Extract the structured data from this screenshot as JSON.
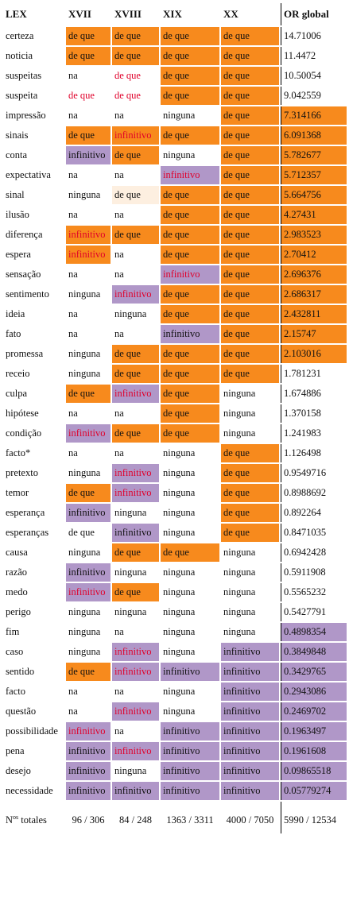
{
  "headers": [
    "LEX",
    "XVII",
    "XVIII",
    "XIX",
    "XX",
    "OR global"
  ],
  "colors": {
    "orange": "#f78a1d",
    "purple": "#b097c8",
    "light": "#fdefe0",
    "red_text": "#e0002a"
  },
  "rows": [
    {
      "lex": "certeza",
      "c": [
        [
          "de que",
          "o",
          ""
        ],
        [
          "de que",
          "o",
          ""
        ],
        [
          "de que",
          "o",
          ""
        ],
        [
          "de que",
          "o",
          ""
        ]
      ],
      "or": "14.71006",
      "orc": ""
    },
    {
      "lex": "noticia",
      "c": [
        [
          "de que",
          "o",
          ""
        ],
        [
          "de que",
          "o",
          ""
        ],
        [
          "de que",
          "o",
          ""
        ],
        [
          "de que",
          "o",
          ""
        ]
      ],
      "or": "11.4472",
      "orc": ""
    },
    {
      "lex": "suspeitas",
      "c": [
        [
          "na",
          "",
          ""
        ],
        [
          "de que",
          "",
          "red"
        ],
        [
          "de que",
          "o",
          ""
        ],
        [
          "de que",
          "o",
          ""
        ]
      ],
      "or": "10.50054",
      "orc": ""
    },
    {
      "lex": "suspeita",
      "c": [
        [
          "de que",
          "",
          "red"
        ],
        [
          "de que",
          "",
          "red"
        ],
        [
          "de que",
          "o",
          ""
        ],
        [
          "de que",
          "o",
          ""
        ]
      ],
      "or": "9.042559",
      "orc": ""
    },
    {
      "lex": "impressão",
      "c": [
        [
          "na",
          "",
          ""
        ],
        [
          "na",
          "",
          ""
        ],
        [
          "ninguna",
          "",
          ""
        ],
        [
          "de que",
          "o",
          ""
        ]
      ],
      "or": "7.314166",
      "orc": "o"
    },
    {
      "lex": "sinais",
      "c": [
        [
          "de que",
          "o",
          ""
        ],
        [
          "infinitivo",
          "o",
          "red"
        ],
        [
          "de que",
          "o",
          ""
        ],
        [
          "de que",
          "o",
          ""
        ]
      ],
      "or": "6.091368",
      "orc": "o"
    },
    {
      "lex": "conta",
      "c": [
        [
          "infinitivo",
          "p",
          ""
        ],
        [
          "de que",
          "o",
          ""
        ],
        [
          "ninguna",
          "",
          ""
        ],
        [
          "de que",
          "o",
          ""
        ]
      ],
      "or": "5.782677",
      "orc": "o"
    },
    {
      "lex": "expectativa",
      "c": [
        [
          "na",
          "",
          ""
        ],
        [
          "na",
          "",
          ""
        ],
        [
          "infinitivo",
          "p",
          "red"
        ],
        [
          "de que",
          "o",
          ""
        ]
      ],
      "or": "5.712357",
      "orc": "o"
    },
    {
      "lex": "sinal",
      "c": [
        [
          "ninguna",
          "",
          ""
        ],
        [
          "de que",
          "l",
          ""
        ],
        [
          "de que",
          "o",
          ""
        ],
        [
          "de que",
          "o",
          ""
        ]
      ],
      "or": "5.664756",
      "orc": "o"
    },
    {
      "lex": "ilusão",
      "c": [
        [
          "na",
          "",
          ""
        ],
        [
          "na",
          "",
          ""
        ],
        [
          "de que",
          "o",
          ""
        ],
        [
          "de que",
          "o",
          ""
        ]
      ],
      "or": "4.27431",
      "orc": "o"
    },
    {
      "lex": "diferença",
      "c": [
        [
          "infinitivo",
          "o",
          "red"
        ],
        [
          "de que",
          "o",
          ""
        ],
        [
          "de que",
          "o",
          ""
        ],
        [
          "de que",
          "o",
          ""
        ]
      ],
      "or": "2.983523",
      "orc": "o"
    },
    {
      "lex": "espera",
      "c": [
        [
          "infinitivo",
          "o",
          "red"
        ],
        [
          "na",
          "",
          ""
        ],
        [
          "de que",
          "o",
          ""
        ],
        [
          "de que",
          "o",
          ""
        ]
      ],
      "or": "2.70412",
      "orc": "o"
    },
    {
      "lex": "sensação",
      "c": [
        [
          "na",
          "",
          ""
        ],
        [
          "na",
          "",
          ""
        ],
        [
          "infinitivo",
          "p",
          "red"
        ],
        [
          "de que",
          "o",
          ""
        ]
      ],
      "or": "2.696376",
      "orc": "o"
    },
    {
      "lex": "sentimento",
      "c": [
        [
          "ninguna",
          "",
          ""
        ],
        [
          "infinitivo",
          "p",
          "red"
        ],
        [
          "de que",
          "o",
          ""
        ],
        [
          "de que",
          "o",
          ""
        ]
      ],
      "or": "2.686317",
      "orc": "o"
    },
    {
      "lex": "ideia",
      "c": [
        [
          "na",
          "",
          ""
        ],
        [
          "ninguna",
          "",
          ""
        ],
        [
          "de que",
          "o",
          ""
        ],
        [
          "de que",
          "o",
          ""
        ]
      ],
      "or": "2.432811",
      "orc": "o"
    },
    {
      "lex": "fato",
      "c": [
        [
          "na",
          "",
          ""
        ],
        [
          "na",
          "",
          ""
        ],
        [
          "infinitivo",
          "p",
          ""
        ],
        [
          "de que",
          "o",
          ""
        ]
      ],
      "or": "2.15747",
      "orc": "o"
    },
    {
      "lex": "promessa",
      "c": [
        [
          "ninguna",
          "",
          ""
        ],
        [
          "de que",
          "o",
          ""
        ],
        [
          "de que",
          "o",
          ""
        ],
        [
          "de que",
          "o",
          ""
        ]
      ],
      "or": "2.103016",
      "orc": "o"
    },
    {
      "lex": "receio",
      "c": [
        [
          "ninguna",
          "",
          ""
        ],
        [
          "de que",
          "o",
          ""
        ],
        [
          "de que",
          "o",
          ""
        ],
        [
          "de que",
          "o",
          ""
        ]
      ],
      "or": "1.781231",
      "orc": ""
    },
    {
      "lex": "culpa",
      "c": [
        [
          "de que",
          "o",
          ""
        ],
        [
          "infinitivo",
          "p",
          "red"
        ],
        [
          "de que",
          "o",
          ""
        ],
        [
          "ninguna",
          "",
          ""
        ]
      ],
      "or": "1.674886",
      "orc": ""
    },
    {
      "lex": "hipótese",
      "c": [
        [
          "na",
          "",
          ""
        ],
        [
          "na",
          "",
          ""
        ],
        [
          "de que",
          "o",
          ""
        ],
        [
          "ninguna",
          "",
          ""
        ]
      ],
      "or": "1.370158",
      "orc": ""
    },
    {
      "lex": "condição",
      "c": [
        [
          "infinitivo",
          "p",
          "red"
        ],
        [
          "de que",
          "o",
          ""
        ],
        [
          "de que",
          "o",
          ""
        ],
        [
          "ninguna",
          "",
          ""
        ]
      ],
      "or": "1.241983",
      "orc": ""
    },
    {
      "lex": "facto*",
      "c": [
        [
          "na",
          "",
          ""
        ],
        [
          "na",
          "",
          ""
        ],
        [
          "ninguna",
          "",
          ""
        ],
        [
          "de que",
          "o",
          ""
        ]
      ],
      "or": "1.126498",
      "orc": ""
    },
    {
      "lex": "pretexto",
      "c": [
        [
          "ninguna",
          "",
          ""
        ],
        [
          "infinitivo",
          "p",
          "red"
        ],
        [
          "ninguna",
          "",
          ""
        ],
        [
          "de que",
          "o",
          ""
        ]
      ],
      "or": "0.9549716",
      "orc": ""
    },
    {
      "lex": "temor",
      "c": [
        [
          "de que",
          "o",
          ""
        ],
        [
          "infinitivo",
          "p",
          "red"
        ],
        [
          "ninguna",
          "",
          ""
        ],
        [
          "de que",
          "o",
          ""
        ]
      ],
      "or": "0.8988692",
      "orc": ""
    },
    {
      "lex": "esperança",
      "c": [
        [
          "infinitivo",
          "p",
          ""
        ],
        [
          "ninguna",
          "",
          ""
        ],
        [
          "ninguna",
          "",
          ""
        ],
        [
          "de que",
          "o",
          ""
        ]
      ],
      "or": "0.892264",
      "orc": ""
    },
    {
      "lex": "esperanças",
      "c": [
        [
          "de que",
          "",
          ""
        ],
        [
          "infinitivo",
          "p",
          ""
        ],
        [
          "ninguna",
          "",
          ""
        ],
        [
          "de que",
          "o",
          ""
        ]
      ],
      "or": "0.8471035",
      "orc": ""
    },
    {
      "lex": "causa",
      "c": [
        [
          "ninguna",
          "",
          ""
        ],
        [
          "de que",
          "o",
          ""
        ],
        [
          "de que",
          "o",
          ""
        ],
        [
          "ninguna",
          "",
          ""
        ]
      ],
      "or": "0.6942428",
      "orc": ""
    },
    {
      "lex": "razão",
      "c": [
        [
          "infinitivo",
          "p",
          ""
        ],
        [
          "ninguna",
          "",
          ""
        ],
        [
          "ninguna",
          "",
          ""
        ],
        [
          "ninguna",
          "",
          ""
        ]
      ],
      "or": "0.5911908",
      "orc": ""
    },
    {
      "lex": "medo",
      "c": [
        [
          "infinitivo",
          "p",
          "red"
        ],
        [
          "de que",
          "o",
          ""
        ],
        [
          "ninguna",
          "",
          ""
        ],
        [
          "ninguna",
          "",
          ""
        ]
      ],
      "or": "0.5565232",
      "orc": ""
    },
    {
      "lex": "perigo",
      "c": [
        [
          "ninguna",
          "",
          ""
        ],
        [
          "ninguna",
          "",
          ""
        ],
        [
          "ninguna",
          "",
          ""
        ],
        [
          "ninguna",
          "",
          ""
        ]
      ],
      "or": "0.5427791",
      "orc": ""
    },
    {
      "lex": "fim",
      "c": [
        [
          "ninguna",
          "",
          ""
        ],
        [
          "na",
          "",
          ""
        ],
        [
          "ninguna",
          "",
          ""
        ],
        [
          "ninguna",
          "",
          ""
        ]
      ],
      "or": "0.4898354",
      "orc": "p"
    },
    {
      "lex": "caso",
      "c": [
        [
          "ninguna",
          "",
          ""
        ],
        [
          "infinitivo",
          "p",
          "red"
        ],
        [
          "ninguna",
          "",
          ""
        ],
        [
          "infinitivo",
          "p",
          ""
        ]
      ],
      "or": "0.3849848",
      "orc": "p"
    },
    {
      "lex": "sentido",
      "c": [
        [
          "de que",
          "o",
          ""
        ],
        [
          "infinitivo",
          "p",
          "red"
        ],
        [
          "infinitivo",
          "p",
          ""
        ],
        [
          "infinitivo",
          "p",
          ""
        ]
      ],
      "or": "0.3429765",
      "orc": "p"
    },
    {
      "lex": "facto",
      "c": [
        [
          "na",
          "",
          ""
        ],
        [
          "na",
          "",
          ""
        ],
        [
          "ninguna",
          "",
          ""
        ],
        [
          "infinitivo",
          "p",
          ""
        ]
      ],
      "or": "0.2943086",
      "orc": "p"
    },
    {
      "lex": "questão",
      "c": [
        [
          "na",
          "",
          ""
        ],
        [
          "infinitivo",
          "p",
          "red"
        ],
        [
          "ninguna",
          "",
          ""
        ],
        [
          "infinitivo",
          "p",
          ""
        ]
      ],
      "or": "0.2469702",
      "orc": "p"
    },
    {
      "lex": "possibilidade",
      "c": [
        [
          "infinitivo",
          "p",
          "red"
        ],
        [
          "na",
          "",
          ""
        ],
        [
          "infinitivo",
          "p",
          ""
        ],
        [
          "infinitivo",
          "p",
          ""
        ]
      ],
      "or": "0.1963497",
      "orc": "p"
    },
    {
      "lex": "pena",
      "c": [
        [
          "infinitivo",
          "p",
          ""
        ],
        [
          "infinitivo",
          "p",
          "red"
        ],
        [
          "infinitivo",
          "p",
          ""
        ],
        [
          "infinitivo",
          "p",
          ""
        ]
      ],
      "or": "0.1961608",
      "orc": "p"
    },
    {
      "lex": "desejo",
      "c": [
        [
          "infinitivo",
          "p",
          ""
        ],
        [
          "ninguna",
          "",
          ""
        ],
        [
          "infinitivo",
          "p",
          ""
        ],
        [
          "infinitivo",
          "p",
          ""
        ]
      ],
      "or": "0.09865518",
      "orc": "p"
    },
    {
      "lex": "necessidade",
      "c": [
        [
          "infinitivo",
          "p",
          ""
        ],
        [
          "infinitivo",
          "p",
          ""
        ],
        [
          "infinitivo",
          "p",
          ""
        ],
        [
          "infinitivo",
          "p",
          ""
        ]
      ],
      "or": "0.05779274",
      "orc": "p"
    }
  ],
  "totals": {
    "label_main": "N",
    "label_sup": "os",
    "label_rest": " totales",
    "values": [
      "96 / 306",
      "84 / 248",
      "1363 / 3311",
      "4000 / 7050",
      "5990 / 12534"
    ]
  }
}
